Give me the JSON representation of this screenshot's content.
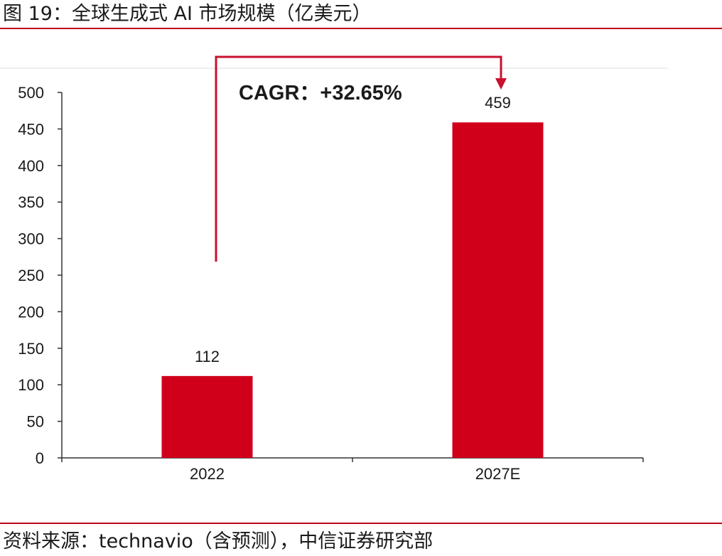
{
  "figure": {
    "title": "图 19：全球生成式 AI 市场规模（亿美元）",
    "source": "资料来源：technavio（含预测），中信证券研究部",
    "annotation": "CAGR：+32.65%"
  },
  "colors": {
    "bar": "#d0001b",
    "accent_rule": "#c00018",
    "arrow": "#c8102e",
    "axis": "#333333",
    "grid_top": "#dddddd",
    "text": "#1a1a1a"
  },
  "chart_data": {
    "type": "bar",
    "title": "全球生成式 AI 市场规模（亿美元）",
    "categories": [
      "2022",
      "2027E"
    ],
    "values": [
      112,
      459
    ],
    "data_labels": [
      "112",
      "459"
    ],
    "xlabel": "",
    "ylabel": "",
    "ylim": [
      0,
      500
    ],
    "yticks": [
      "0",
      "50",
      "100",
      "150",
      "200",
      "250",
      "300",
      "350",
      "400",
      "450",
      "500"
    ],
    "grid": false,
    "legend": "none",
    "annotation": "CAGR：+32.65%"
  }
}
